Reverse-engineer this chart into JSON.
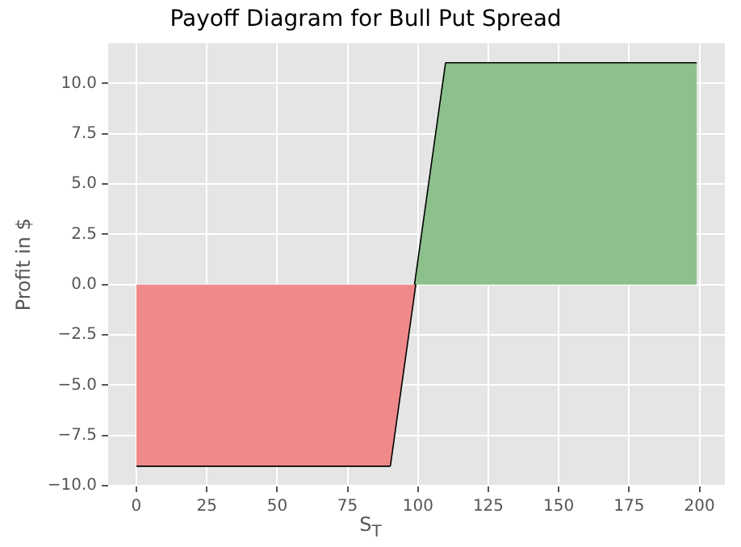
{
  "chart_data": {
    "type": "line",
    "title": "Payoff Diagram for Bull Put Spread",
    "xlabel": "S$_{T}$",
    "ylabel": "Profit in $",
    "series": [
      {
        "type": "area",
        "color": "#f08a8a",
        "x": [
          0,
          90,
          99
        ],
        "values": [
          -9,
          -9,
          0
        ]
      },
      {
        "type": "area",
        "color": "#8cc08c",
        "x": [
          99,
          110,
          199
        ],
        "values": [
          0,
          11,
          11
        ]
      },
      {
        "type": "line",
        "color": "#000000",
        "x": [
          0,
          90,
          110,
          199
        ],
        "values": [
          -9,
          -9,
          11,
          11
        ]
      }
    ],
    "xlim": [
      -10,
      209
    ],
    "xticks": [
      0,
      25,
      50,
      75,
      100,
      125,
      150,
      175,
      200
    ],
    "ylim": [
      -10,
      12
    ],
    "yticks": [
      {
        "value": -10,
        "label": "−10.0"
      },
      {
        "value": -7.5,
        "label": "−7.5"
      },
      {
        "value": -5,
        "label": "−5.0"
      },
      {
        "value": -2.5,
        "label": "−2.5"
      },
      {
        "value": 0,
        "label": "0.0"
      },
      {
        "value": 2.5,
        "label": "2.5"
      },
      {
        "value": 5,
        "label": "5.0"
      },
      {
        "value": 7.5,
        "label": "7.5"
      },
      {
        "value": 10,
        "label": "10.0"
      }
    ],
    "grid": true,
    "legend": false,
    "marker": "none",
    "line_style": "solid"
  }
}
